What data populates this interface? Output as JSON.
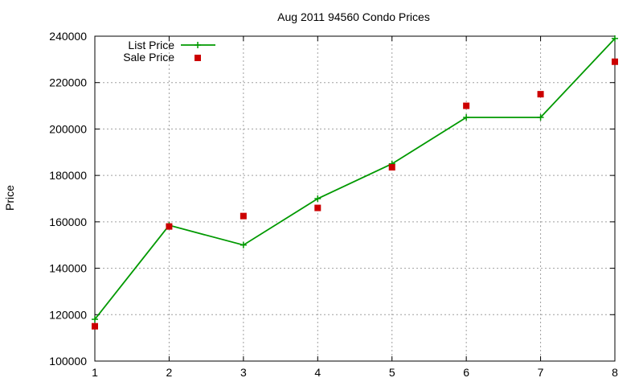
{
  "chart_data": {
    "type": "line",
    "title": "Aug 2011 94560 Condo Prices",
    "xlabel": "",
    "ylabel": "Price",
    "x": [
      1,
      2,
      3,
      4,
      5,
      6,
      7,
      8
    ],
    "xlim": [
      1,
      8
    ],
    "ylim": [
      100000,
      240000
    ],
    "yticks": [
      100000,
      120000,
      140000,
      160000,
      180000,
      200000,
      220000,
      240000
    ],
    "grid": true,
    "legend_position": "top-left",
    "series": [
      {
        "name": "List Price",
        "style": "line-with-plus-markers",
        "color": "#009900",
        "values": [
          118000,
          158500,
          150000,
          170000,
          185000,
          205000,
          205000,
          239000
        ]
      },
      {
        "name": "Sale Price",
        "style": "square-points",
        "color": "#cc0000",
        "values": [
          115000,
          158000,
          162500,
          166000,
          183500,
          210000,
          215000,
          229000
        ]
      }
    ]
  }
}
